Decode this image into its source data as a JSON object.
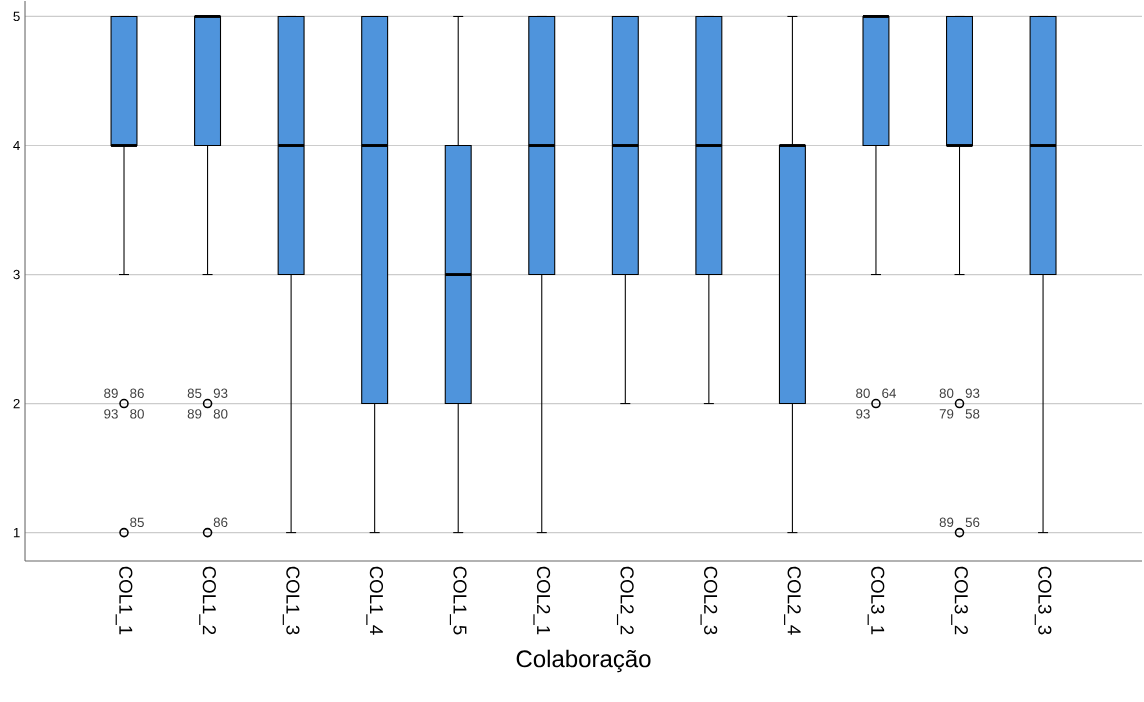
{
  "chart_data": {
    "type": "box",
    "xlabel": "Colaboração",
    "categories": [
      "COL1_1",
      "COL1_2",
      "COL1_3",
      "COL1_4",
      "COL1_5",
      "COL2_1",
      "COL2_2",
      "COL2_3",
      "COL2_4",
      "COL3_1",
      "COL3_2",
      "COL3_3"
    ],
    "color": "#4f94dc",
    "boxes": [
      {
        "low": 3,
        "q1": 4,
        "median": 4,
        "q3": 5,
        "high": 5
      },
      {
        "low": 3,
        "q1": 4,
        "median": 5,
        "q3": 5,
        "high": 5
      },
      {
        "low": 1,
        "q1": 3,
        "median": 4,
        "q3": 5,
        "high": 5
      },
      {
        "low": 1,
        "q1": 2,
        "median": 4,
        "q3": 5,
        "high": 5
      },
      {
        "low": 1,
        "q1": 2,
        "median": 3,
        "q3": 4,
        "high": 5
      },
      {
        "low": 1,
        "q1": 3,
        "median": 4,
        "q3": 5,
        "high": 5
      },
      {
        "low": 2,
        "q1": 3,
        "median": 4,
        "q3": 5,
        "high": 5
      },
      {
        "low": 2,
        "q1": 3,
        "median": 4,
        "q3": 5,
        "high": 5
      },
      {
        "low": 1,
        "q1": 2,
        "median": 4,
        "q3": 4,
        "high": 5
      },
      {
        "low": 3,
        "q1": 4,
        "median": 5,
        "q3": 5,
        "high": 5
      },
      {
        "low": 3,
        "q1": 4,
        "median": 4,
        "q3": 5,
        "high": 5
      },
      {
        "low": 1,
        "q1": 3,
        "median": 4,
        "q3": 5,
        "high": 5
      }
    ],
    "series": [
      {
        "type": "scatter",
        "color": "#000000",
        "x": [
          "COL1_1",
          "COL1_1",
          "COL1_2",
          "COL1_2",
          "COL3_1",
          "COL3_2",
          "COL3_2"
        ],
        "values": [
          2,
          1,
          2,
          1,
          2,
          2,
          1
        ]
      }
    ],
    "marker": "circle",
    "ylim": [
      0.78,
      5.12
    ],
    "yticks": [
      1,
      2,
      3,
      4,
      5
    ],
    "grid": "y",
    "annotations": [
      {
        "text": "86",
        "x": "COL1_1",
        "y": 2
      },
      {
        "text": "89",
        "x": "COL1_1",
        "y": 2
      },
      {
        "text": "93",
        "x": "COL1_1",
        "y": 2
      },
      {
        "text": "80",
        "x": "COL1_1",
        "y": 2
      },
      {
        "text": "85",
        "x": "COL1_1",
        "y": 1
      },
      {
        "text": "93",
        "x": "COL1_2",
        "y": 2
      },
      {
        "text": "85",
        "x": "COL1_2",
        "y": 2
      },
      {
        "text": "89",
        "x": "COL1_2",
        "y": 2
      },
      {
        "text": "80",
        "x": "COL1_2",
        "y": 2
      },
      {
        "text": "86",
        "x": "COL1_2",
        "y": 1
      },
      {
        "text": "64",
        "x": "COL3_1",
        "y": 2
      },
      {
        "text": "80",
        "x": "COL3_1",
        "y": 2
      },
      {
        "text": "93",
        "x": "COL3_1",
        "y": 2
      },
      {
        "text": "93",
        "x": "COL3_2",
        "y": 2
      },
      {
        "text": "80",
        "x": "COL3_2",
        "y": 2
      },
      {
        "text": "79",
        "x": "COL3_2",
        "y": 2
      },
      {
        "text": "58",
        "x": "COL3_2",
        "y": 2
      },
      {
        "text": "56",
        "x": "COL3_2",
        "y": 1
      },
      {
        "text": "89",
        "x": "COL3_2",
        "y": 1
      }
    ]
  }
}
